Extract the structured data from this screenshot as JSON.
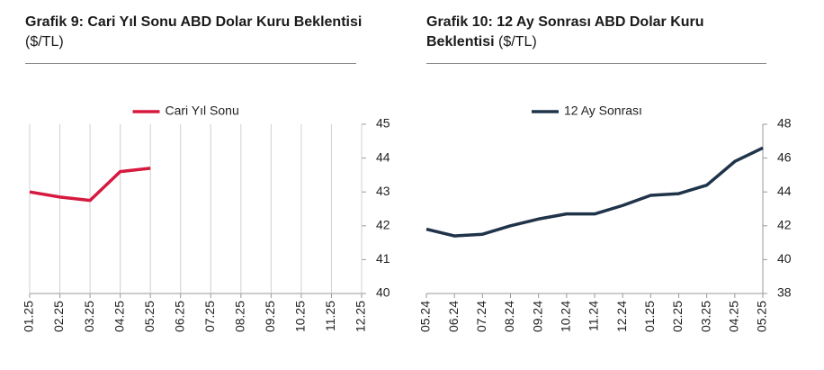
{
  "chart_data": [
    {
      "type": "line",
      "title": "Grafik 9: Cari Yıl Sonu ABD Dolar Kuru Beklentisi",
      "unit": "($/TL)",
      "categories": [
        "01.25",
        "02.25",
        "03.25",
        "04.25",
        "05.25",
        "06.25",
        "07.25",
        "08.25",
        "09.25",
        "10.25",
        "11.25",
        "12.25"
      ],
      "series": [
        {
          "name": "Cari Yıl Sonu",
          "color": "#d6193e",
          "values": [
            43.0,
            42.85,
            42.75,
            43.6,
            43.7,
            null,
            null,
            null,
            null,
            null,
            null,
            null
          ]
        }
      ],
      "ylim": [
        40,
        45
      ],
      "yticks": [
        40,
        41,
        42,
        43,
        44,
        45
      ],
      "grid": true
    },
    {
      "type": "line",
      "title": "Grafik 10: 12 Ay Sonrası ABD Dolar Kuru Beklentisi",
      "unit": "($/TL)",
      "categories": [
        "05.24",
        "06.24",
        "07.24",
        "08.24",
        "09.24",
        "10.24",
        "11.24",
        "12.24",
        "01.25",
        "02.25",
        "03.25",
        "04.25",
        "05.25"
      ],
      "series": [
        {
          "name": "12 Ay Sonrası",
          "color": "#1f3349",
          "values": [
            41.8,
            41.4,
            41.5,
            42.0,
            42.4,
            42.7,
            42.7,
            43.2,
            43.8,
            43.9,
            44.4,
            45.8,
            46.6
          ]
        }
      ],
      "ylim": [
        38,
        48
      ],
      "yticks": [
        38,
        40,
        42,
        44,
        46,
        48
      ],
      "grid": false
    }
  ]
}
